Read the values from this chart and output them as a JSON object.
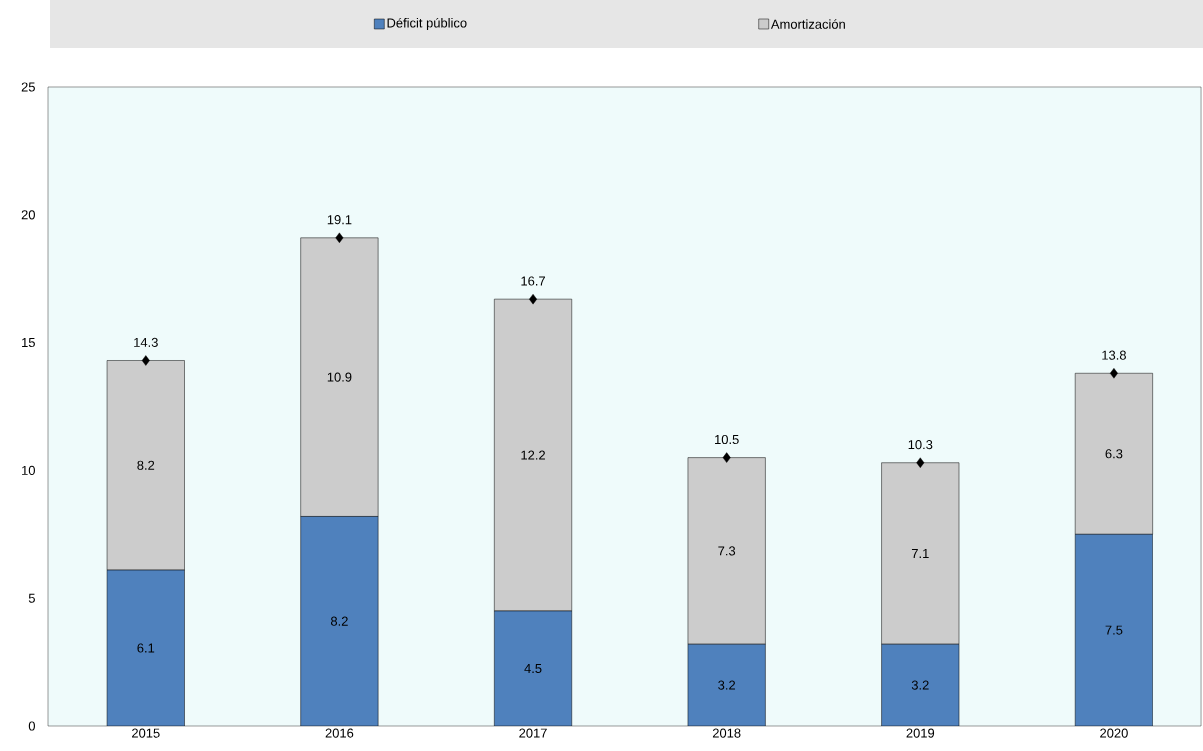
{
  "chart_data": {
    "type": "bar",
    "stacked": true,
    "categories": [
      "2015",
      "2016",
      "2017",
      "2018",
      "2019",
      "2020"
    ],
    "series": [
      {
        "name": "Déficit público",
        "color": "#4f81bd",
        "values": [
          6.1,
          8.2,
          4.5,
          3.2,
          3.2,
          7.5
        ]
      },
      {
        "name": "Amortización",
        "color": "#cccccc",
        "values": [
          8.2,
          10.9,
          12.2,
          7.3,
          7.1,
          6.3
        ]
      },
      {
        "type": "scatter",
        "color": "#000000",
        "marker": "diamond",
        "values": [
          14.3,
          19.1,
          16.7,
          10.5,
          10.3,
          13.8
        ]
      }
    ],
    "ylim": [
      0,
      25
    ],
    "yticks": [
      0,
      5,
      10,
      15,
      20,
      25
    ],
    "data_labels": true,
    "legend": "top",
    "grid": false
  }
}
